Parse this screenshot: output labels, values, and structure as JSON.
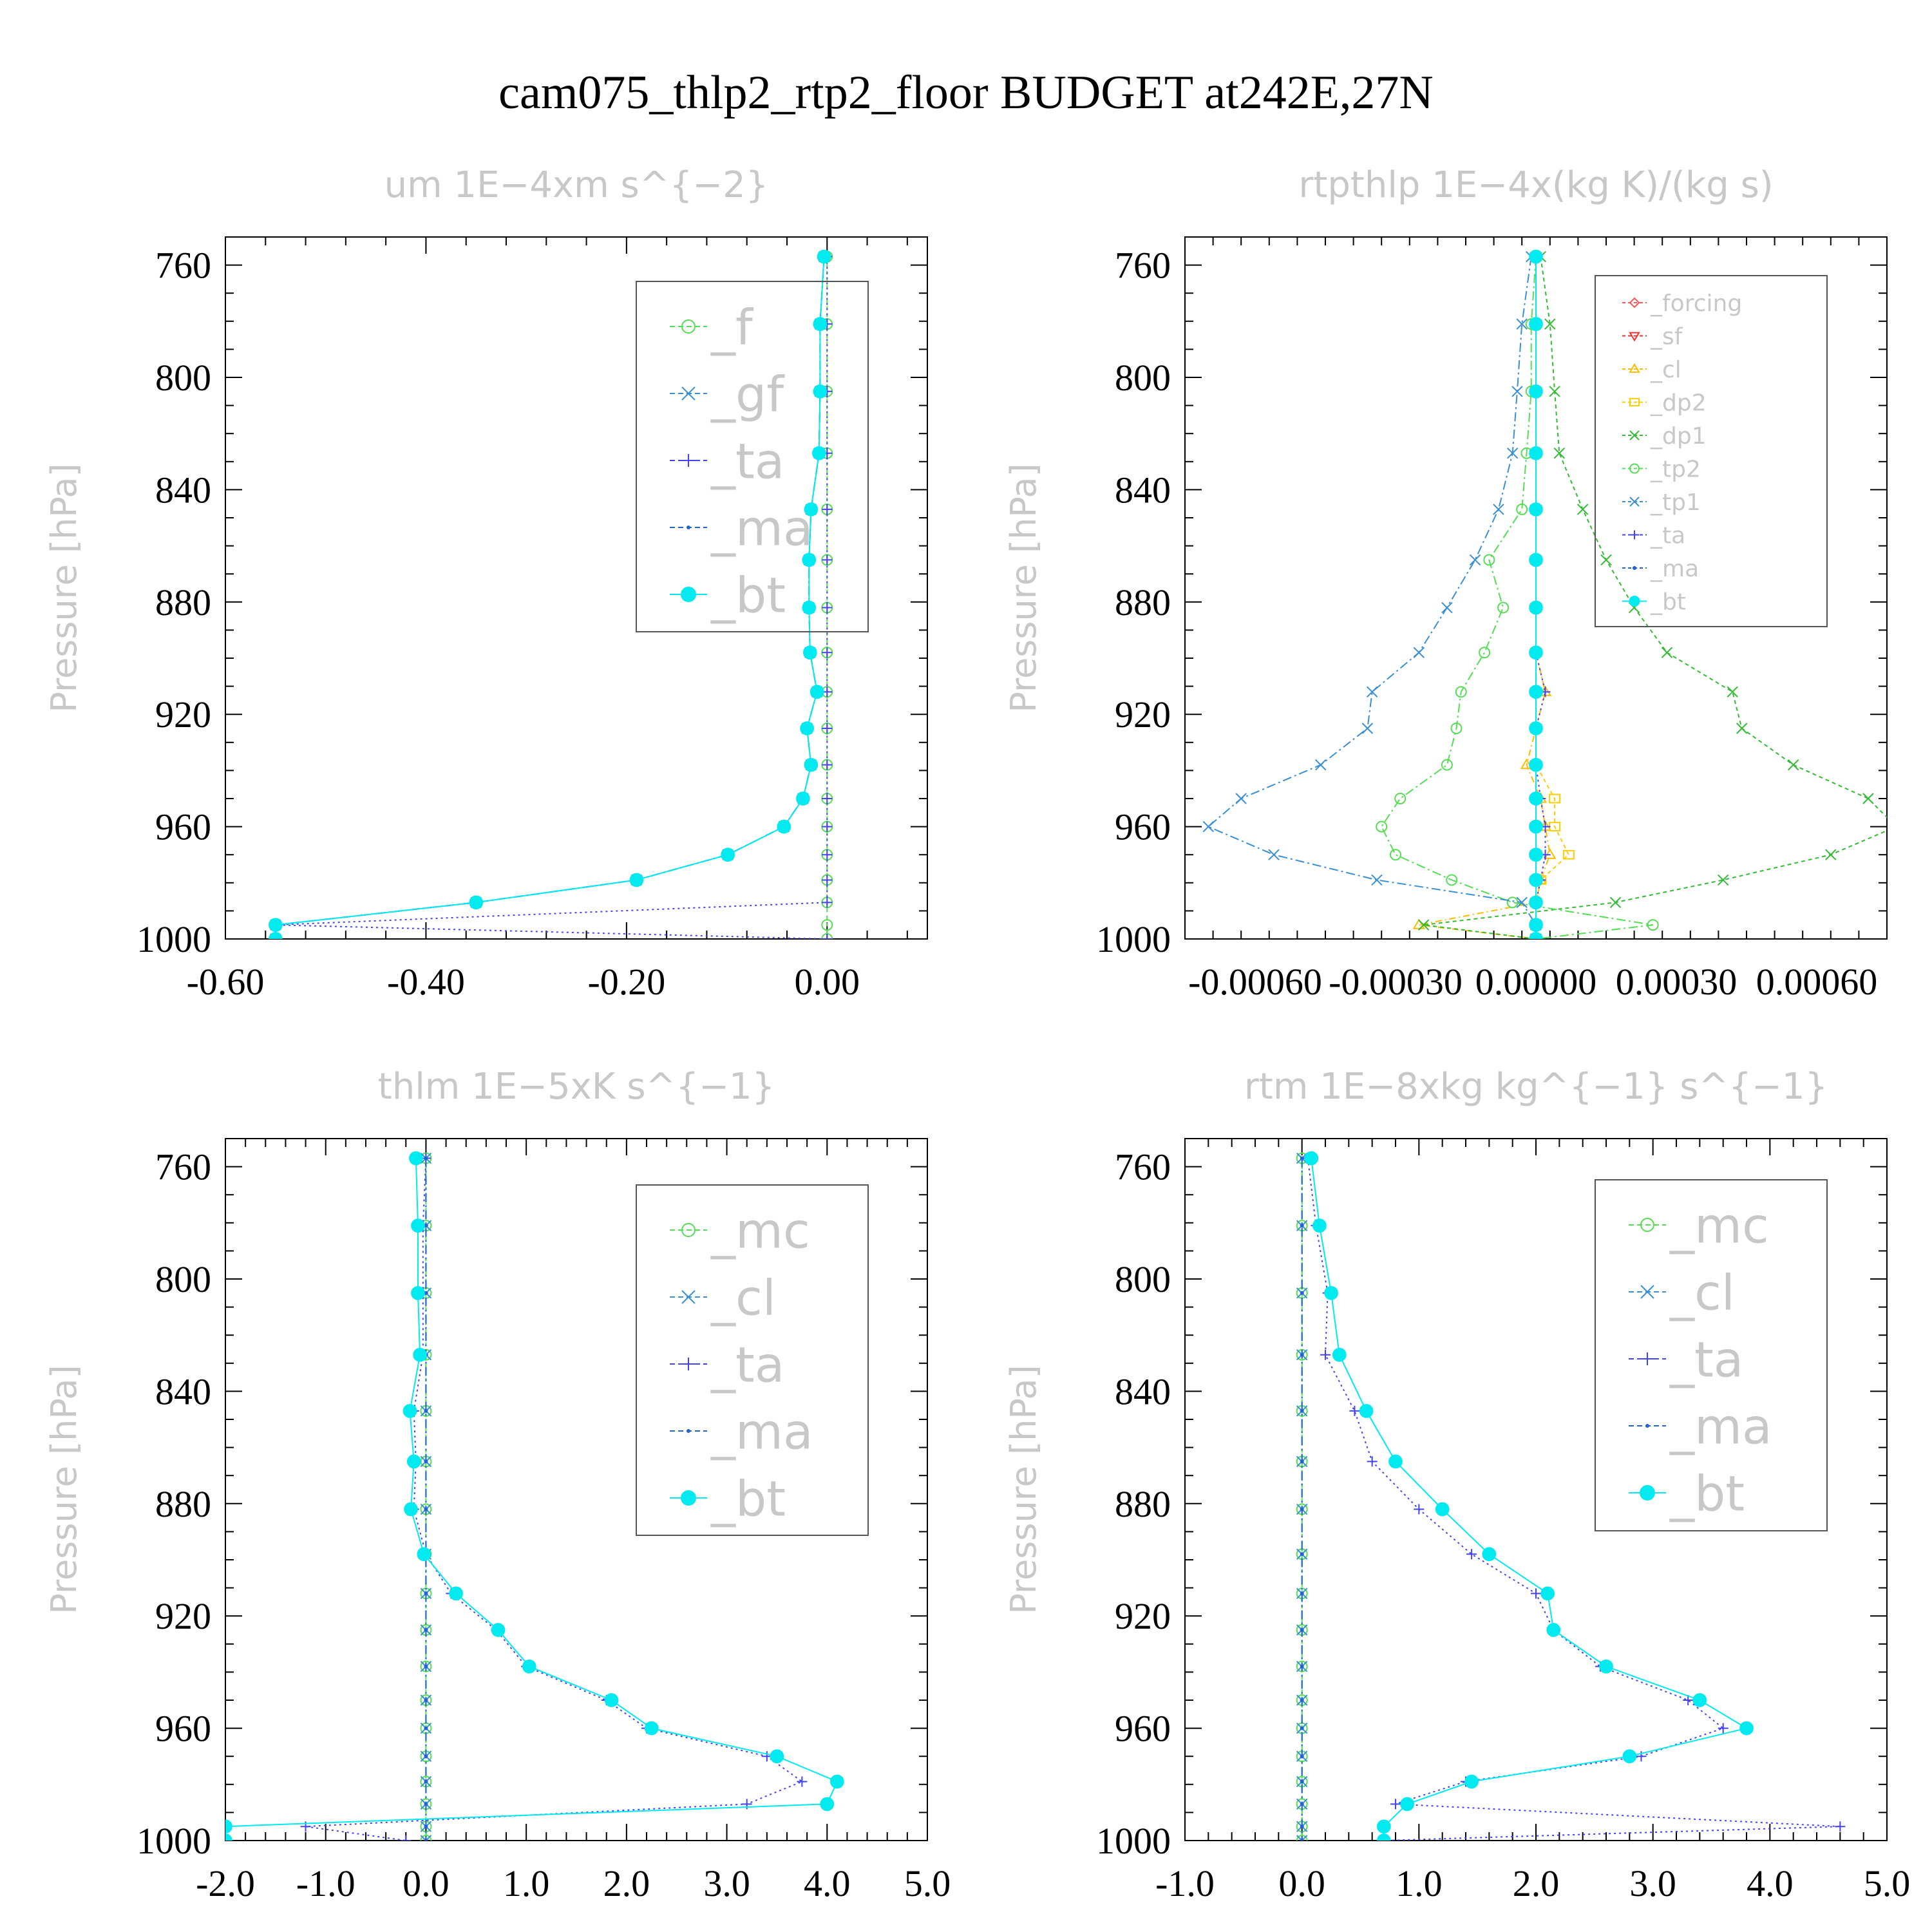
{
  "figure_title": "cam075_thlp2_rtp2_floor  BUDGET at242E,27N",
  "colors": {
    "f": "#55dd55",
    "mc": "#55dd55",
    "gf": "#3a8fd4",
    "cl_blue": "#3a8fd4",
    "ta": "#4444ee",
    "ma": "#2266cc",
    "bt": "#00eaf0",
    "forcing": "#ff5555",
    "sf": "#ee3333",
    "cl_gold": "#ffbb00",
    "dp2": "#ffcc00",
    "dp1": "#33bb33",
    "tp2": "#55dd55",
    "tp1": "#3a8fd4"
  },
  "chart_data": [
    {
      "type": "line",
      "title": "um   1E−4xm s^{−2}",
      "ylabel": "Pressure [hPa]",
      "xlim": [
        -0.6,
        0.1
      ],
      "ylim": [
        1000,
        750
      ],
      "xticks": [
        "-0.60",
        "-0.40",
        "-0.20",
        "0.00"
      ],
      "xtick_values": [
        -0.6,
        -0.4,
        -0.2,
        0.0
      ],
      "yticks": [
        "760",
        "800",
        "840",
        "880",
        "920",
        "960",
        "1000"
      ],
      "legend": [
        "_f",
        "_gf",
        "_ta",
        "_ma",
        "_bt"
      ],
      "p": [
        757,
        781,
        805,
        827,
        847,
        865,
        882,
        898,
        912,
        925,
        938,
        950,
        960,
        970,
        979,
        987,
        995,
        1000
      ],
      "series": [
        {
          "name": "_f",
          "marker": "circle-open",
          "dash": "6,5",
          "values": [
            0,
            0,
            0,
            0,
            0,
            0,
            0,
            0,
            0,
            0,
            0,
            0,
            0,
            0,
            0,
            0,
            0,
            0
          ]
        },
        {
          "name": "_gf",
          "marker": "x",
          "dash": "14,5,3,5",
          "values": [
            -0.003,
            -0.007,
            -0.007,
            -0.008,
            -0.016,
            -0.018,
            -0.018,
            -0.017,
            -0.01,
            -0.02,
            -0.016,
            -0.024,
            -0.043,
            -0.099,
            -0.19,
            -0.35,
            -0.55,
            -0.55
          ]
        },
        {
          "name": "_ta",
          "marker": "plus",
          "dash": "3,5",
          "values": [
            0,
            0,
            0,
            0,
            0,
            0,
            0,
            0,
            0,
            0,
            0,
            0,
            0,
            0,
            0,
            0,
            -0.55,
            0
          ]
        },
        {
          "name": "_ma",
          "marker": "dot",
          "dash": "14,5,3,5",
          "values": [
            -0.003,
            -0.007,
            -0.007,
            -0.008,
            -0.016,
            -0.018,
            -0.018,
            -0.017,
            -0.01,
            -0.02,
            -0.016,
            -0.024,
            -0.043,
            -0.099,
            -0.19,
            -0.35,
            -0.55,
            -0.55
          ]
        },
        {
          "name": "_bt",
          "marker": "filled",
          "dash": "",
          "values": [
            -0.003,
            -0.007,
            -0.007,
            -0.008,
            -0.016,
            -0.018,
            -0.018,
            -0.017,
            -0.01,
            -0.02,
            -0.016,
            -0.024,
            -0.043,
            -0.099,
            -0.19,
            -0.35,
            -0.55,
            -0.55
          ]
        }
      ]
    },
    {
      "type": "line",
      "title": "rtpthlp   1E−4x(kg K)/(kg s)",
      "ylabel": "Pressure [hPa]",
      "xlim": [
        -0.00075,
        0.00075
      ],
      "ylim": [
        1000,
        750
      ],
      "xticks": [
        "-0.00060",
        "-0.00030",
        "0.00000",
        "0.00030",
        "0.00060"
      ],
      "xtick_values": [
        -0.0006,
        -0.0003,
        0.0,
        0.0003,
        0.0006
      ],
      "yticks": [
        "760",
        "800",
        "840",
        "880",
        "920",
        "960",
        "1000"
      ],
      "legend": [
        "_forcing",
        "_sf",
        "_cl",
        "_dp2",
        "_dp1",
        "_tp2",
        "_tp1",
        "_ta",
        "_ma",
        "_bt"
      ],
      "p": [
        757,
        781,
        805,
        827,
        847,
        865,
        882,
        898,
        912,
        925,
        938,
        950,
        960,
        970,
        979,
        987,
        995,
        1000
      ],
      "series": [
        {
          "name": "_forcing",
          "marker": "diamond-open",
          "dash": "6,5",
          "values": [
            0,
            0,
            0,
            0,
            0,
            0,
            0,
            0,
            0,
            0,
            0,
            0,
            0,
            0,
            0,
            0,
            0,
            0
          ]
        },
        {
          "name": "_sf",
          "marker": "tri-down",
          "dash": "6,5",
          "values": [
            0,
            0,
            0,
            0,
            0,
            0,
            0,
            0,
            0,
            0,
            0,
            0,
            0,
            0,
            0,
            0,
            0,
            0
          ]
        },
        {
          "name": "_cl",
          "marker": "tri-up",
          "dash": "10,5,2,5",
          "values": [
            0,
            0,
            0,
            0,
            0,
            0,
            0,
            0,
            2e-05,
            0,
            -2e-05,
            1e-05,
            2e-05,
            3e-05,
            1e-05,
            0,
            -0.00025,
            0
          ]
        },
        {
          "name": "_dp2",
          "marker": "square-open",
          "dash": "6,5",
          "values": [
            0,
            0,
            0,
            0,
            0,
            0,
            0,
            0,
            0,
            0,
            0,
            4e-05,
            4e-05,
            7e-05,
            1e-05,
            0,
            0,
            0
          ]
        },
        {
          "name": "_dp1",
          "marker": "x",
          "dash": "6,5",
          "values": [
            1e-05,
            3e-05,
            4e-05,
            5e-05,
            0.0001,
            0.00015,
            0.00021,
            0.00028,
            0.00042,
            0.00044,
            0.00055,
            0.00071,
            0.00077,
            0.00063,
            0.0004,
            0.00017,
            -0.00024,
            0
          ]
        },
        {
          "name": "_tp2",
          "marker": "circle-open",
          "dash": "14,5,3,5",
          "values": [
            0,
            -1e-05,
            -1e-05,
            -2e-05,
            -3e-05,
            -0.0001,
            -7e-05,
            -0.00011,
            -0.00016,
            -0.00017,
            -0.00019,
            -0.00029,
            -0.00033,
            -0.0003,
            -0.00018,
            -5e-05,
            0.00025,
            0
          ]
        },
        {
          "name": "_tp1",
          "marker": "x",
          "dash": "14,5,3,5",
          "values": [
            -1e-05,
            -3e-05,
            -4e-05,
            -5e-05,
            -8e-05,
            -0.00013,
            -0.00019,
            -0.00025,
            -0.00035,
            -0.00036,
            -0.00046,
            -0.00063,
            -0.0007,
            -0.00056,
            -0.00034,
            -3e-05,
            0,
            0
          ]
        },
        {
          "name": "_ta",
          "marker": "plus",
          "dash": "3,5",
          "values": [
            0,
            0,
            0,
            0,
            0,
            0,
            0,
            0,
            2e-05,
            0,
            0,
            1e-05,
            2e-05,
            2e-05,
            1e-05,
            0,
            0,
            0
          ]
        },
        {
          "name": "_ma",
          "marker": "dot",
          "dash": "14,5,3,5",
          "values": [
            0,
            0,
            0,
            0,
            0,
            0,
            0,
            0,
            0,
            0,
            0,
            0,
            0,
            0,
            0,
            0,
            0,
            0
          ]
        },
        {
          "name": "_bt",
          "marker": "filled",
          "dash": "",
          "values": [
            0,
            0,
            0,
            0,
            0,
            0,
            0,
            0,
            0,
            0,
            0,
            0,
            0,
            0,
            0,
            0,
            0,
            0
          ]
        }
      ]
    },
    {
      "type": "line",
      "title": "thlm   1E−5xK s^{−1}",
      "ylabel": "Pressure [hPa]",
      "xlim": [
        -2.0,
        5.0
      ],
      "ylim": [
        1000,
        750
      ],
      "xticks": [
        "-2.0",
        "-1.0",
        "0.0",
        "1.0",
        "2.0",
        "3.0",
        "4.0",
        "5.0"
      ],
      "xtick_values": [
        -2,
        -1,
        0,
        1,
        2,
        3,
        4,
        5
      ],
      "yticks": [
        "760",
        "800",
        "840",
        "880",
        "920",
        "960",
        "1000"
      ],
      "legend": [
        "_mc",
        "_cl",
        "_ta",
        "_ma",
        "_bt"
      ],
      "p": [
        757,
        781,
        805,
        827,
        847,
        865,
        882,
        898,
        912,
        925,
        938,
        950,
        960,
        970,
        979,
        987,
        995,
        1000
      ],
      "series": [
        {
          "name": "_mc",
          "marker": "circle-open",
          "dash": "6,5",
          "values": [
            0,
            0,
            0,
            0,
            0,
            0,
            0,
            0,
            0,
            0,
            0,
            0,
            0,
            0,
            0,
            0,
            0,
            0
          ]
        },
        {
          "name": "_cl",
          "marker": "x",
          "dash": "14,5,3,5",
          "values": [
            0,
            0,
            0,
            0,
            0,
            0,
            0,
            0,
            0,
            0,
            0,
            0,
            0,
            0,
            0,
            0,
            0,
            0
          ]
        },
        {
          "name": "_ta",
          "marker": "plus",
          "dash": "3,5",
          "values": [
            0,
            -0.03,
            -0.03,
            -0.03,
            -0.12,
            -0.1,
            -0.12,
            0,
            0.25,
            0.7,
            1.0,
            1.8,
            2.2,
            3.4,
            3.75,
            3.2,
            -1.2,
            -0.2
          ]
        },
        {
          "name": "_ma",
          "marker": "dot",
          "dash": "14,5,3,5",
          "values": [
            0,
            0,
            0,
            0,
            0,
            0,
            0,
            0,
            0,
            0,
            0,
            0,
            0,
            0,
            0,
            0,
            0,
            0
          ]
        },
        {
          "name": "_bt",
          "marker": "filled",
          "dash": "",
          "values": [
            -0.1,
            -0.08,
            -0.08,
            -0.06,
            -0.16,
            -0.12,
            -0.15,
            -0.02,
            0.3,
            0.72,
            1.03,
            1.85,
            2.25,
            3.5,
            4.1,
            4.0,
            -2.0,
            -2.0
          ]
        }
      ]
    },
    {
      "type": "line",
      "title": "rtm   1E−8xkg kg^{−1} s^{−1}",
      "ylabel": "Pressure [hPa]",
      "xlim": [
        -1.0,
        5.0
      ],
      "ylim": [
        1000,
        750
      ],
      "xticks": [
        "-1.0",
        "0.0",
        "1.0",
        "2.0",
        "3.0",
        "4.0",
        "5.0"
      ],
      "xtick_values": [
        -1,
        0,
        1,
        2,
        3,
        4,
        5
      ],
      "yticks": [
        "760",
        "800",
        "840",
        "880",
        "920",
        "960",
        "1000"
      ],
      "legend": [
        "_mc",
        "_cl",
        "_ta",
        "_ma",
        "_bt"
      ],
      "p": [
        757,
        781,
        805,
        827,
        847,
        865,
        882,
        898,
        912,
        925,
        938,
        950,
        960,
        970,
        979,
        987,
        995,
        1000
      ],
      "series": [
        {
          "name": "_mc",
          "marker": "circle-open",
          "dash": "6,5",
          "values": [
            0,
            0,
            0,
            0,
            0,
            0,
            0,
            0,
            0,
            0,
            0,
            0,
            0,
            0,
            0,
            0,
            0,
            0
          ]
        },
        {
          "name": "_cl",
          "marker": "x",
          "dash": "14,5,3,5",
          "values": [
            0,
            0,
            0,
            0,
            0,
            0,
            0,
            0,
            0,
            0,
            0,
            0,
            0,
            0,
            0,
            0,
            0,
            0
          ]
        },
        {
          "name": "_ta",
          "marker": "plus",
          "dash": "3,5",
          "values": [
            0.05,
            0.12,
            0.22,
            0.2,
            0.45,
            0.6,
            1.0,
            1.45,
            2.0,
            2.15,
            2.55,
            3.3,
            3.6,
            2.9,
            1.4,
            0.8,
            4.6,
            0.7
          ]
        },
        {
          "name": "_ma",
          "marker": "dot",
          "dash": "14,5,3,5",
          "values": [
            0,
            0,
            0,
            0,
            0,
            0,
            0,
            0,
            0,
            0,
            0,
            0,
            0,
            0,
            0,
            0,
            0,
            0
          ]
        },
        {
          "name": "_bt",
          "marker": "filled",
          "dash": "",
          "values": [
            0.08,
            0.15,
            0.25,
            0.32,
            0.55,
            0.8,
            1.2,
            1.6,
            2.1,
            2.15,
            2.6,
            3.4,
            3.8,
            2.8,
            1.45,
            0.9,
            0.7,
            0.7
          ]
        }
      ]
    }
  ]
}
